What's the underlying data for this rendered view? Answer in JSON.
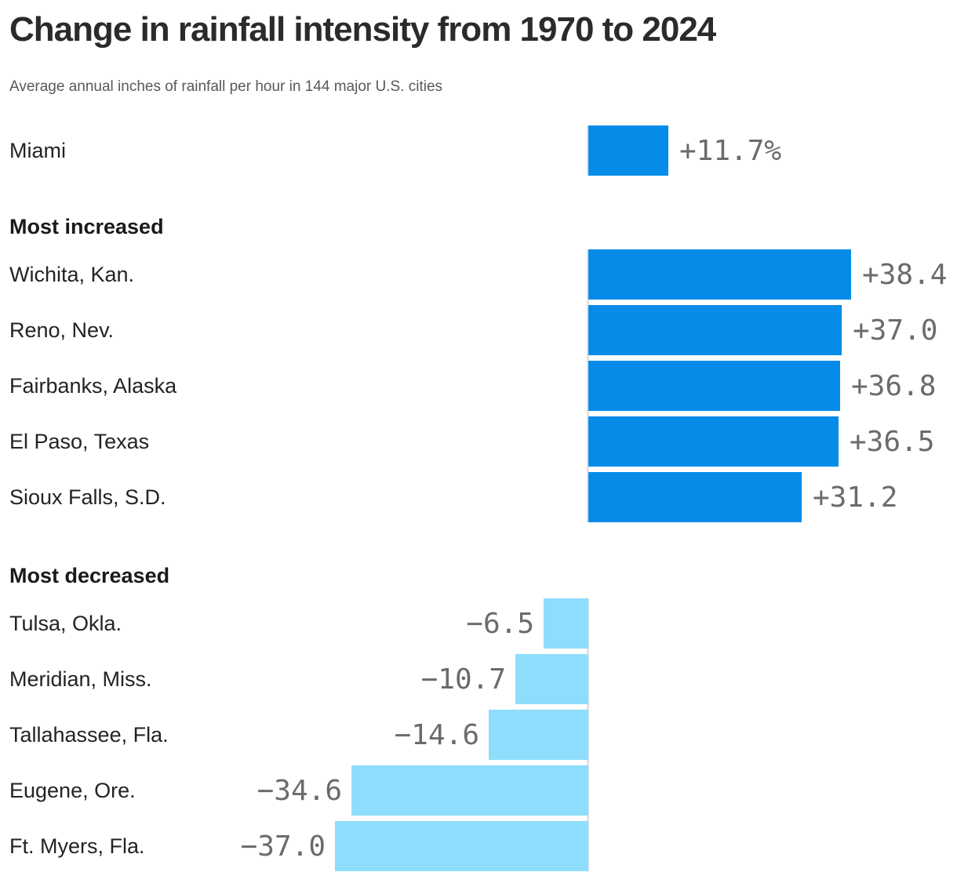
{
  "chart_data": {
    "type": "bar",
    "orientation": "horizontal",
    "title": "Change in rainfall intensity from 1970 to 2024",
    "subtitle": "Average annual inches of rainfall per hour in 144 major U.S. cities",
    "value_format": "signed percent change",
    "baseline": 0,
    "xlim": [
      -40,
      40
    ],
    "grid": false,
    "legend": "none",
    "colors": {
      "positive_bar": "#068CE8",
      "negative_bar": "#8EDDFC",
      "axis_line": "#E2E2E2",
      "value_text": "#6B6B6B"
    },
    "groups": [
      {
        "header": "",
        "rows": [
          {
            "label": "Miami",
            "value": 11.7,
            "value_label": "+11.7%"
          }
        ]
      },
      {
        "header": "Most increased",
        "rows": [
          {
            "label": "Wichita, Kan.",
            "value": 38.4,
            "value_label": "+38.4"
          },
          {
            "label": "Reno, Nev.",
            "value": 37.0,
            "value_label": "+37.0"
          },
          {
            "label": "Fairbanks, Alaska",
            "value": 36.8,
            "value_label": "+36.8"
          },
          {
            "label": "El Paso, Texas",
            "value": 36.5,
            "value_label": "+36.5"
          },
          {
            "label": "Sioux Falls, S.D.",
            "value": 31.2,
            "value_label": "+31.2"
          }
        ]
      },
      {
        "header": "Most decreased",
        "rows": [
          {
            "label": "Tulsa, Okla.",
            "value": -6.5,
            "value_label": "−6.5"
          },
          {
            "label": "Meridian, Miss.",
            "value": -10.7,
            "value_label": "−10.7"
          },
          {
            "label": "Tallahassee, Fla.",
            "value": -14.6,
            "value_label": "−14.6"
          },
          {
            "label": "Eugene, Ore.",
            "value": -34.6,
            "value_label": "−34.6"
          },
          {
            "label": "Ft. Myers, Fla.",
            "value": -37.0,
            "value_label": "−37.0"
          }
        ]
      }
    ]
  }
}
